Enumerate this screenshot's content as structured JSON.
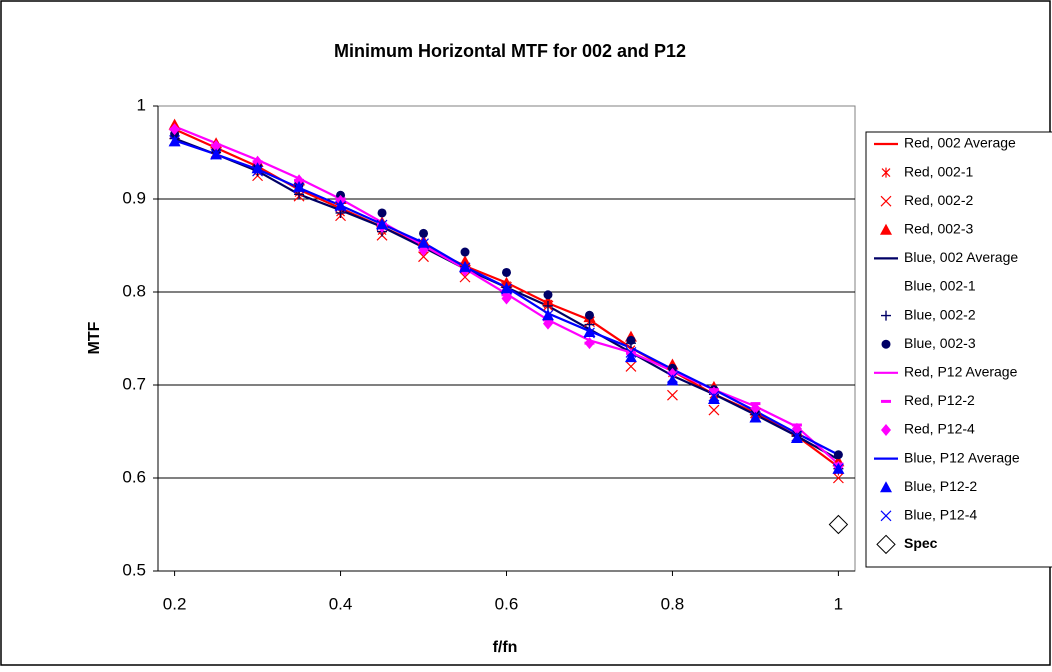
{
  "chart_data": {
    "type": "scatter",
    "title": "Minimum Horizontal MTF for 002 and P12",
    "x_label": "f/fn",
    "y_label": "MTF",
    "x": [
      0.2,
      0.25,
      0.3,
      0.35,
      0.4,
      0.45,
      0.5,
      0.55,
      0.6,
      0.65,
      0.7,
      0.75,
      0.8,
      0.85,
      0.9,
      0.95,
      1.0
    ],
    "xlim": [
      0.18,
      1.02
    ],
    "xticks": [
      0.2,
      0.4,
      0.6,
      0.8,
      1
    ],
    "ylim": [
      0.5,
      1
    ],
    "yticks": [
      0.5,
      0.6,
      0.7,
      0.8,
      0.9,
      1
    ],
    "grid": true,
    "legend": "right",
    "series": [
      {
        "name": "Red, 002 Average",
        "color": "#ff0000",
        "marker": "line",
        "values": [
          0.975,
          0.955,
          0.935,
          0.91,
          0.89,
          0.87,
          0.85,
          0.828,
          0.81,
          0.788,
          0.77,
          0.74,
          0.715,
          0.69,
          0.67,
          0.645,
          0.612
        ]
      },
      {
        "name": "Red, 002-1",
        "color": "#ff0000",
        "marker": "star",
        "values": [
          0.972,
          0.953,
          0.93,
          0.907,
          0.886,
          0.866,
          0.846,
          0.825,
          0.807,
          0.787,
          0.768,
          0.738,
          0.713,
          0.69,
          0.668,
          0.645,
          0.608
        ]
      },
      {
        "name": "Red, 002-2",
        "color": "#ff0000",
        "marker": "x",
        "values": [
          0.97,
          0.95,
          0.925,
          0.903,
          0.882,
          0.861,
          0.838,
          0.816,
          0.805,
          0.785,
          0.768,
          0.72,
          0.689,
          0.673,
          0.67,
          0.645,
          0.6
        ]
      },
      {
        "name": "Red, 002-3",
        "color": "#ff0000",
        "marker": "triangle",
        "values": [
          0.98,
          0.96,
          0.94,
          0.92,
          0.9,
          0.875,
          0.855,
          0.833,
          0.81,
          0.79,
          0.773,
          0.752,
          0.722,
          0.698,
          0.673,
          0.65,
          0.618
        ]
      },
      {
        "name": "Blue, 002 Average",
        "color": "#000066",
        "marker": "line",
        "values": [
          0.965,
          0.948,
          0.93,
          0.905,
          0.888,
          0.87,
          0.848,
          0.825,
          0.805,
          0.785,
          0.76,
          0.735,
          0.71,
          0.69,
          0.668,
          0.645,
          0.62
        ]
      },
      {
        "name": "Blue, 002-1",
        "color": "#000066",
        "marker": "none",
        "values": [
          0.966,
          0.949,
          0.93,
          0.906,
          0.887,
          0.868,
          0.848,
          0.826,
          0.805,
          0.785,
          0.762,
          0.74,
          0.711,
          0.69,
          0.667,
          0.645,
          0.615
        ]
      },
      {
        "name": "Blue, 002-2",
        "color": "#000066",
        "marker": "plus",
        "values": [
          0.965,
          0.95,
          0.93,
          0.905,
          0.885,
          0.865,
          0.848,
          0.827,
          0.805,
          0.785,
          0.765,
          0.745,
          0.712,
          0.69,
          0.668,
          0.645,
          0.61
        ]
      },
      {
        "name": "Blue, 002-3",
        "color": "#000066",
        "marker": "circle",
        "values": [
          0.97,
          0.952,
          0.935,
          0.915,
          0.904,
          0.885,
          0.863,
          0.843,
          0.821,
          0.797,
          0.775,
          0.748,
          0.718,
          0.695,
          0.671,
          0.648,
          0.625
        ]
      },
      {
        "name": "Red, P12 Average",
        "color": "#ff00ff",
        "marker": "line",
        "values": [
          0.978,
          0.96,
          0.942,
          0.922,
          0.9,
          0.875,
          0.85,
          0.825,
          0.798,
          0.77,
          0.748,
          0.735,
          0.715,
          0.695,
          0.677,
          0.655,
          0.615
        ]
      },
      {
        "name": "Red, P12-2",
        "color": "#ff00ff",
        "marker": "dash",
        "values": [
          0.975,
          0.958,
          0.94,
          0.92,
          0.9,
          0.873,
          0.848,
          0.825,
          0.797,
          0.77,
          0.745,
          0.735,
          0.713,
          0.695,
          0.68,
          0.657,
          0.615
        ]
      },
      {
        "name": "Red, P12-4",
        "color": "#ff00ff",
        "marker": "diamond",
        "values": [
          0.975,
          0.957,
          0.94,
          0.92,
          0.898,
          0.87,
          0.845,
          0.823,
          0.793,
          0.766,
          0.745,
          0.733,
          0.712,
          0.692,
          0.675,
          0.653,
          0.612
        ]
      },
      {
        "name": "Blue, P12 Average",
        "color": "#0000ff",
        "marker": "line",
        "values": [
          0.963,
          0.948,
          0.932,
          0.912,
          0.893,
          0.873,
          0.853,
          0.827,
          0.805,
          0.777,
          0.758,
          0.74,
          0.717,
          0.695,
          0.672,
          0.648,
          0.625
        ]
      },
      {
        "name": "Blue, P12-2",
        "color": "#0000ff",
        "marker": "triangle",
        "values": [
          0.962,
          0.948,
          0.933,
          0.913,
          0.893,
          0.873,
          0.853,
          0.827,
          0.804,
          0.775,
          0.757,
          0.73,
          0.705,
          0.685,
          0.665,
          0.643,
          0.61
        ]
      },
      {
        "name": "Blue, P12-4",
        "color": "#0000ff",
        "marker": "x",
        "values": [
          0.963,
          0.948,
          0.93,
          0.912,
          0.892,
          0.872,
          0.852,
          0.826,
          0.803,
          0.775,
          0.756,
          0.735,
          0.708,
          0.688,
          0.666,
          0.645,
          0.61
        ]
      },
      {
        "name": "Spec",
        "color": "#000000",
        "marker": "open-diamond",
        "bold": true,
        "x": [
          1
        ],
        "values": [
          0.55
        ]
      }
    ]
  }
}
